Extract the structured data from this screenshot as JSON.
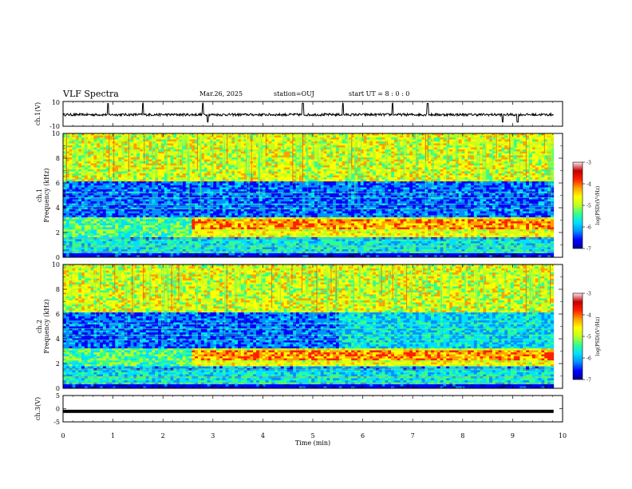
{
  "header": {
    "title": "VLF Spectra",
    "date": "Mar.26, 2025",
    "station": "station=OUJ",
    "start_ut": "start UT =  8 : 0  : 0"
  },
  "colorbar": {
    "label": "log(PSD)(V²/Hz)",
    "ticks": [
      "-3",
      "-4",
      "-5",
      "-6",
      "-7"
    ],
    "colors": [
      "#000090",
      "#0000ff",
      "#0090ff",
      "#00e0ff",
      "#30ff90",
      "#c0ff20",
      "#ffff00",
      "#ffa000",
      "#ff2000",
      "#c00000",
      "#ffe8e8"
    ]
  },
  "chart_data": [
    {
      "type": "line",
      "panel": "ch1-waveform",
      "ylabel": "ch.1(V)",
      "ylim": [
        -10,
        10
      ],
      "yticks": [
        "10",
        "-10"
      ],
      "xlim": [
        0,
        10
      ],
      "description_values": {
        "baseline": 0,
        "typical_amplitude": 1,
        "spikes_up": [
          0.9,
          1.6,
          2.8,
          4.8,
          5.6,
          6.6,
          7.3
        ],
        "spikes_down": [
          2.9,
          8.8,
          9.1
        ]
      }
    },
    {
      "type": "heatmap",
      "panel": "ch1-spectrogram",
      "ylabel": "ch.1\nFrequency (kHz)",
      "ylim": [
        0,
        10
      ],
      "yticks": [
        "0",
        "2",
        "4",
        "6",
        "8",
        "10"
      ],
      "xlim": [
        0,
        9.82
      ],
      "zlim": [
        -7,
        -3
      ],
      "features": {
        "dark_band_khz": [
          3.2,
          6.0
        ],
        "emission_band_khz": [
          1.6,
          3.3
        ],
        "emission_rise_min": 2.6,
        "quiet_band_khz": [
          0.3,
          1.4
        ]
      }
    },
    {
      "type": "heatmap",
      "panel": "ch2-spectrogram",
      "ylabel": "ch.2\nFrequency (kHz)",
      "ylim": [
        0,
        10
      ],
      "yticks": [
        "0",
        "2",
        "4",
        "6",
        "8",
        "10"
      ],
      "xlim": [
        0,
        9.82
      ],
      "zlim": [
        -7,
        -3
      ],
      "features": {
        "dark_band_khz": [
          3.2,
          6.0
        ],
        "emission_band_khz": [
          1.8,
          3.4
        ],
        "emission_rise_min": 2.6,
        "quiet_band_khz": [
          0.3,
          1.6
        ]
      }
    },
    {
      "type": "line",
      "panel": "ch3-waveform",
      "ylabel": "ch.3(V)",
      "ylim": [
        -5,
        5
      ],
      "yticks": [
        "5",
        "0",
        "-5"
      ],
      "xlim": [
        0,
        10
      ],
      "description_values": {
        "baseline": -1,
        "band_thickness": 0.6
      }
    }
  ],
  "xaxis": {
    "label": "Time (min)",
    "ticks": [
      "0",
      "1",
      "2",
      "3",
      "4",
      "5",
      "6",
      "7",
      "8",
      "9",
      "10"
    ]
  }
}
